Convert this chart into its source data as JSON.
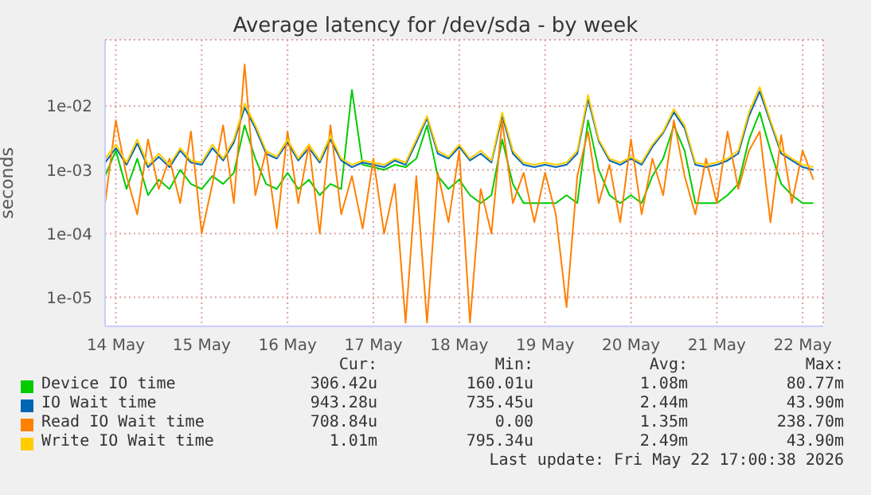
{
  "chart_data": {
    "type": "line",
    "title": "Average latency for /dev/sda - by week",
    "ylabel": "seconds",
    "x": [
      "2026-05-14T09:00",
      "2026-05-14T12:00",
      "2026-05-14T15:00",
      "2026-05-14T18:00",
      "2026-05-14T21:00",
      "2026-05-15T00:00",
      "2026-05-15T03:00",
      "2026-05-15T06:00",
      "2026-05-15T09:00",
      "2026-05-15T12:00",
      "2026-05-15T15:00",
      "2026-05-15T18:00",
      "2026-05-15T21:00",
      "2026-05-16T00:00",
      "2026-05-16T03:00",
      "2026-05-16T06:00",
      "2026-05-16T09:00",
      "2026-05-16T12:00",
      "2026-05-16T15:00",
      "2026-05-16T18:00",
      "2026-05-16T21:00",
      "2026-05-17T00:00",
      "2026-05-17T03:00",
      "2026-05-17T06:00",
      "2026-05-17T09:00",
      "2026-05-17T12:00",
      "2026-05-17T15:00",
      "2026-05-17T18:00",
      "2026-05-17T21:00",
      "2026-05-18T00:00",
      "2026-05-18T03:00",
      "2026-05-18T06:00",
      "2026-05-18T09:00",
      "2026-05-18T12:00",
      "2026-05-18T15:00",
      "2026-05-18T18:00",
      "2026-05-18T21:00",
      "2026-05-19T00:00",
      "2026-05-19T03:00",
      "2026-05-19T06:00",
      "2026-05-19T09:00",
      "2026-05-19T12:00",
      "2026-05-19T15:00",
      "2026-05-19T18:00",
      "2026-05-19T21:00",
      "2026-05-20T00:00",
      "2026-05-20T03:00",
      "2026-05-20T06:00",
      "2026-05-20T09:00",
      "2026-05-20T12:00",
      "2026-05-20T15:00",
      "2026-05-20T18:00",
      "2026-05-20T21:00",
      "2026-05-21T00:00",
      "2026-05-21T03:00",
      "2026-05-21T06:00",
      "2026-05-21T09:00",
      "2026-05-21T12:00",
      "2026-05-21T15:00",
      "2026-05-21T18:00",
      "2026-05-21T21:00",
      "2026-05-22T00:00",
      "2026-05-22T03:00",
      "2026-05-22T06:00",
      "2026-05-22T09:00",
      "2026-05-22T12:00",
      "2026-05-22T15:00"
    ],
    "series": [
      {
        "name": "Device IO time",
        "color": "#00cc00",
        "values": [
          0.0008,
          0.002,
          0.0005,
          0.0015,
          0.0004,
          0.0007,
          0.0005,
          0.001,
          0.0006,
          0.0005,
          0.0008,
          0.0006,
          0.0009,
          0.005,
          0.0015,
          0.0006,
          0.0005,
          0.0009,
          0.0005,
          0.0007,
          0.0004,
          0.0006,
          0.0005,
          0.018,
          0.0012,
          0.0011,
          0.001,
          0.0012,
          0.0011,
          0.0015,
          0.005,
          0.0008,
          0.0005,
          0.0007,
          0.0004,
          0.0003,
          0.0004,
          0.003,
          0.0006,
          0.0003,
          0.0003,
          0.0003,
          0.0003,
          0.0004,
          0.0003,
          0.006,
          0.001,
          0.0004,
          0.0003,
          0.0004,
          0.0003,
          0.0008,
          0.0015,
          0.005,
          0.002,
          0.0003,
          0.0003,
          0.0003,
          0.0004,
          0.0006,
          0.003,
          0.008,
          0.002,
          0.0006,
          0.0004,
          0.0003,
          0.0003
        ]
      },
      {
        "name": "IO Wait time",
        "color": "#0066b3",
        "values": [
          0.0013,
          0.0022,
          0.0012,
          0.0026,
          0.0011,
          0.0016,
          0.0011,
          0.002,
          0.0013,
          0.0012,
          0.0022,
          0.0014,
          0.0027,
          0.0095,
          0.0045,
          0.0018,
          0.0015,
          0.0027,
          0.0014,
          0.0022,
          0.0013,
          0.003,
          0.0014,
          0.0011,
          0.0013,
          0.0012,
          0.0011,
          0.0014,
          0.0012,
          0.0027,
          0.0065,
          0.0018,
          0.0015,
          0.0023,
          0.0014,
          0.0018,
          0.0013,
          0.007,
          0.0018,
          0.0012,
          0.0011,
          0.0012,
          0.0011,
          0.0012,
          0.0018,
          0.013,
          0.0028,
          0.0014,
          0.0012,
          0.0015,
          0.0012,
          0.0023,
          0.0038,
          0.008,
          0.0045,
          0.0012,
          0.0011,
          0.0012,
          0.0014,
          0.0018,
          0.007,
          0.017,
          0.0055,
          0.0018,
          0.0014,
          0.0011,
          0.001
        ]
      },
      {
        "name": "Read IO Wait time",
        "color": "#ff8000",
        "values": [
          0.0003,
          0.006,
          0.0008,
          0.0002,
          0.003,
          0.0005,
          0.0015,
          0.0003,
          0.004,
          0.0001,
          0.0006,
          0.005,
          0.0003,
          0.045,
          0.0004,
          0.002,
          0.00012,
          0.004,
          0.0003,
          0.0025,
          0.0001,
          0.005,
          0.0002,
          0.0008,
          0.00012,
          0.0015,
          0.0001,
          0.0006,
          4e-06,
          0.0008,
          4e-06,
          0.0009,
          0.00015,
          0.002,
          4e-06,
          0.0005,
          0.0001,
          0.006,
          0.0003,
          0.0009,
          0.00015,
          0.0009,
          0.0002,
          7e-06,
          0.0008,
          0.004,
          0.0003,
          0.0012,
          0.00015,
          0.003,
          0.0002,
          0.0015,
          0.0004,
          0.006,
          0.0008,
          0.0002,
          0.0015,
          0.0003,
          0.004,
          0.0005,
          0.002,
          0.004,
          0.00015,
          0.0035,
          0.0003,
          0.002,
          0.0007
        ]
      },
      {
        "name": "Write IO Wait time",
        "color": "#ffcc00",
        "values": [
          0.0015,
          0.0025,
          0.0013,
          0.003,
          0.0012,
          0.0018,
          0.0012,
          0.0022,
          0.0014,
          0.0013,
          0.0025,
          0.0015,
          0.003,
          0.011,
          0.005,
          0.002,
          0.0016,
          0.003,
          0.0015,
          0.0025,
          0.0014,
          0.0035,
          0.0015,
          0.0012,
          0.0014,
          0.0013,
          0.0012,
          0.0015,
          0.0013,
          0.003,
          0.007,
          0.002,
          0.0016,
          0.0025,
          0.0015,
          0.002,
          0.0014,
          0.008,
          0.002,
          0.0013,
          0.0012,
          0.0013,
          0.0012,
          0.0013,
          0.002,
          0.015,
          0.003,
          0.0015,
          0.0013,
          0.0016,
          0.0013,
          0.0025,
          0.004,
          0.009,
          0.005,
          0.0013,
          0.0012,
          0.0013,
          0.0015,
          0.002,
          0.008,
          0.02,
          0.006,
          0.002,
          0.0015,
          0.0012,
          0.0011
        ]
      }
    ],
    "xlim": [
      "2026-05-14T09:00",
      "2026-05-22T17:45"
    ],
    "xticks": [
      {
        "value": "2026-05-14T12:00",
        "label": "14 May"
      },
      {
        "value": "2026-05-15T12:00",
        "label": "15 May"
      },
      {
        "value": "2026-05-16T12:00",
        "label": "16 May"
      },
      {
        "value": "2026-05-17T12:00",
        "label": "17 May"
      },
      {
        "value": "2026-05-18T12:00",
        "label": "18 May"
      },
      {
        "value": "2026-05-19T12:00",
        "label": "19 May"
      },
      {
        "value": "2026-05-20T12:00",
        "label": "20 May"
      },
      {
        "value": "2026-05-21T12:00",
        "label": "21 May"
      },
      {
        "value": "2026-05-22T12:00",
        "label": "22 May"
      }
    ],
    "ylim": [
      3.5e-06,
      0.11
    ],
    "yticks": [
      {
        "value": 1e-05,
        "label": "1e-05"
      },
      {
        "value": 0.0001,
        "label": "1e-04"
      },
      {
        "value": 0.001,
        "label": "1e-03"
      },
      {
        "value": 0.01,
        "label": "1e-02"
      }
    ],
    "log": "y",
    "grid": true,
    "legend": "bottom",
    "annotations": [
      "Cur:",
      "Min:",
      "Avg:",
      "Max:",
      "306.42u",
      "160.01u",
      "1.08m",
      "80.77m",
      "943.28u",
      "735.45u",
      "2.44m",
      "43.90m",
      "708.84u",
      "0.00",
      "1.35m",
      "238.70m",
      "1.01m",
      "795.34u",
      "2.49m",
      "43.90m",
      "Last update: Fri May 22 17:00:38 2026"
    ]
  }
}
